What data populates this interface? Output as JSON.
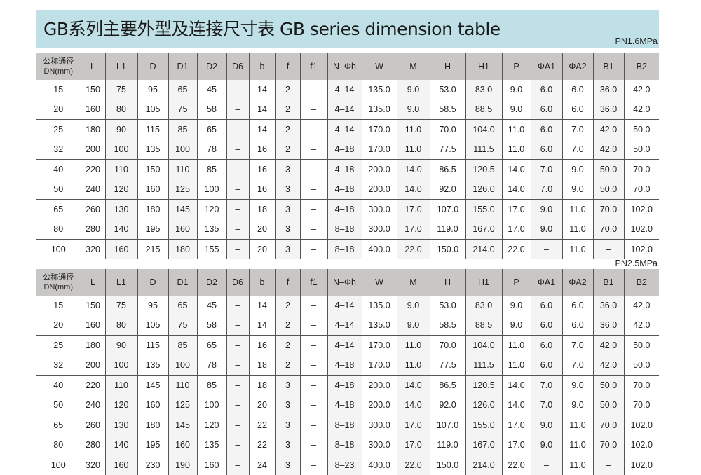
{
  "title": "GB系列主要外型及连接尺寸表 GB series dimension table",
  "headers": [
    "公称通径\nDN(mm)",
    "L",
    "L1",
    "D",
    "D1",
    "D2",
    "D6",
    "b",
    "f",
    "f1",
    "N–Φh",
    "W",
    "M",
    "H",
    "H1",
    "P",
    "ΦA1",
    "ΦA2",
    "B1",
    "B2"
  ],
  "tables": [
    {
      "pressure": "PN1.6MPa",
      "rows": [
        [
          "15",
          "150",
          "75",
          "95",
          "65",
          "45",
          "–",
          "14",
          "2",
          "–",
          "4–14",
          "135.0",
          "9.0",
          "53.0",
          "83.0",
          "9.0",
          "6.0",
          "6.0",
          "36.0",
          "42.0"
        ],
        [
          "20",
          "160",
          "80",
          "105",
          "75",
          "58",
          "–",
          "14",
          "2",
          "–",
          "4–14",
          "135.0",
          "9.0",
          "58.5",
          "88.5",
          "9.0",
          "6.0",
          "6.0",
          "36.0",
          "42.0"
        ],
        [
          "25",
          "180",
          "90",
          "115",
          "85",
          "65",
          "–",
          "14",
          "2",
          "–",
          "4–14",
          "170.0",
          "11.0",
          "70.0",
          "104.0",
          "11.0",
          "6.0",
          "7.0",
          "42.0",
          "50.0"
        ],
        [
          "32",
          "200",
          "100",
          "135",
          "100",
          "78",
          "–",
          "16",
          "2",
          "–",
          "4–18",
          "170.0",
          "11.0",
          "77.5",
          "111.5",
          "11.0",
          "6.0",
          "7.0",
          "42.0",
          "50.0"
        ],
        [
          "40",
          "220",
          "110",
          "150",
          "110",
          "85",
          "–",
          "16",
          "3",
          "–",
          "4–18",
          "200.0",
          "14.0",
          "86.5",
          "120.5",
          "14.0",
          "7.0",
          "9.0",
          "50.0",
          "70.0"
        ],
        [
          "50",
          "240",
          "120",
          "160",
          "125",
          "100",
          "–",
          "16",
          "3",
          "–",
          "4–18",
          "200.0",
          "14.0",
          "92.0",
          "126.0",
          "14.0",
          "7.0",
          "9.0",
          "50.0",
          "70.0"
        ],
        [
          "65",
          "260",
          "130",
          "180",
          "145",
          "120",
          "–",
          "18",
          "3",
          "–",
          "4–18",
          "300.0",
          "17.0",
          "107.0",
          "155.0",
          "17.0",
          "9.0",
          "11.0",
          "70.0",
          "102.0"
        ],
        [
          "80",
          "280",
          "140",
          "195",
          "160",
          "135",
          "–",
          "20",
          "3",
          "–",
          "8–18",
          "300.0",
          "17.0",
          "119.0",
          "167.0",
          "17.0",
          "9.0",
          "11.0",
          "70.0",
          "102.0"
        ],
        [
          "100",
          "320",
          "160",
          "215",
          "180",
          "155",
          "–",
          "20",
          "3",
          "–",
          "8–18",
          "400.0",
          "22.0",
          "150.0",
          "214.0",
          "22.0",
          "–",
          "11.0",
          "–",
          "102.0"
        ]
      ]
    },
    {
      "pressure": "PN2.5MPa",
      "rows": [
        [
          "15",
          "150",
          "75",
          "95",
          "65",
          "45",
          "–",
          "14",
          "2",
          "–",
          "4–14",
          "135.0",
          "9.0",
          "53.0",
          "83.0",
          "9.0",
          "6.0",
          "6.0",
          "36.0",
          "42.0"
        ],
        [
          "20",
          "160",
          "80",
          "105",
          "75",
          "58",
          "–",
          "14",
          "2",
          "–",
          "4–14",
          "135.0",
          "9.0",
          "58.5",
          "88.5",
          "9.0",
          "6.0",
          "6.0",
          "36.0",
          "42.0"
        ],
        [
          "25",
          "180",
          "90",
          "115",
          "85",
          "65",
          "–",
          "16",
          "2",
          "–",
          "4–14",
          "170.0",
          "11.0",
          "70.0",
          "104.0",
          "11.0",
          "6.0",
          "7.0",
          "42.0",
          "50.0"
        ],
        [
          "32",
          "200",
          "100",
          "135",
          "100",
          "78",
          "–",
          "18",
          "2",
          "–",
          "4–18",
          "170.0",
          "11.0",
          "77.5",
          "111.5",
          "11.0",
          "6.0",
          "7.0",
          "42.0",
          "50.0"
        ],
        [
          "40",
          "220",
          "110",
          "145",
          "110",
          "85",
          "–",
          "18",
          "3",
          "–",
          "4–18",
          "200.0",
          "14.0",
          "86.5",
          "120.5",
          "14.0",
          "7.0",
          "9.0",
          "50.0",
          "70.0"
        ],
        [
          "50",
          "240",
          "120",
          "160",
          "125",
          "100",
          "–",
          "20",
          "3",
          "–",
          "4–18",
          "200.0",
          "14.0",
          "92.0",
          "126.0",
          "14.0",
          "7.0",
          "9.0",
          "50.0",
          "70.0"
        ],
        [
          "65",
          "260",
          "130",
          "180",
          "145",
          "120",
          "–",
          "22",
          "3",
          "–",
          "8–18",
          "300.0",
          "17.0",
          "107.0",
          "155.0",
          "17.0",
          "9.0",
          "11.0",
          "70.0",
          "102.0"
        ],
        [
          "80",
          "280",
          "140",
          "195",
          "160",
          "135",
          "–",
          "22",
          "3",
          "–",
          "8–18",
          "300.0",
          "17.0",
          "119.0",
          "167.0",
          "17.0",
          "9.0",
          "11.0",
          "70.0",
          "102.0"
        ],
        [
          "100",
          "320",
          "160",
          "230",
          "190",
          "160",
          "–",
          "24",
          "3",
          "–",
          "8–23",
          "400.0",
          "22.0",
          "150.0",
          "214.0",
          "22.0",
          "–",
          "11.0",
          "–",
          "102.0"
        ]
      ]
    }
  ]
}
